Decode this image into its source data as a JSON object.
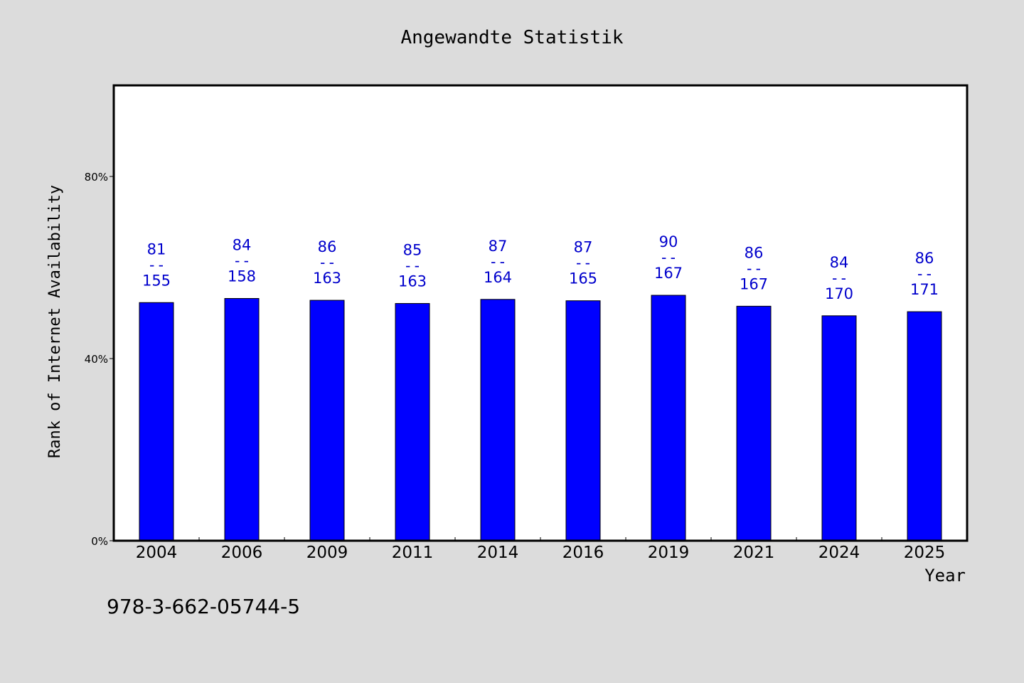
{
  "chart_data": {
    "type": "bar",
    "title": "Angewandte Statistik",
    "xlabel": "Year",
    "ylabel": "Rank of Internet Availability",
    "categories": [
      "2004",
      "2006",
      "2009",
      "2011",
      "2014",
      "2016",
      "2019",
      "2021",
      "2024",
      "2025"
    ],
    "series": [
      {
        "values": [
          52.3,
          53.2,
          52.8,
          52.1,
          53.0,
          52.7,
          53.9,
          51.5,
          49.4,
          50.3
        ]
      }
    ],
    "bar_labels": {
      "top": [
        "81",
        "84",
        "86",
        "85",
        "87",
        "87",
        "90",
        "86",
        "84",
        "86"
      ],
      "separator": "--",
      "bottom": [
        "155",
        "158",
        "163",
        "163",
        "164",
        "165",
        "167",
        "167",
        "170",
        "171"
      ]
    },
    "y_ticks": [
      {
        "value": 0,
        "label": "0%"
      },
      {
        "value": 40,
        "label": "40%"
      },
      {
        "value": 80,
        "label": "80%"
      }
    ],
    "ylim": [
      0,
      100
    ],
    "grid": false,
    "legend": "none",
    "bar_color": "#0000ff",
    "label_color": "#0000cc",
    "annotation": "978-3-662-05744-5"
  },
  "colors": {
    "background": "#dcdcdc",
    "plot_background": "#ffffff",
    "axis": "#000000"
  }
}
